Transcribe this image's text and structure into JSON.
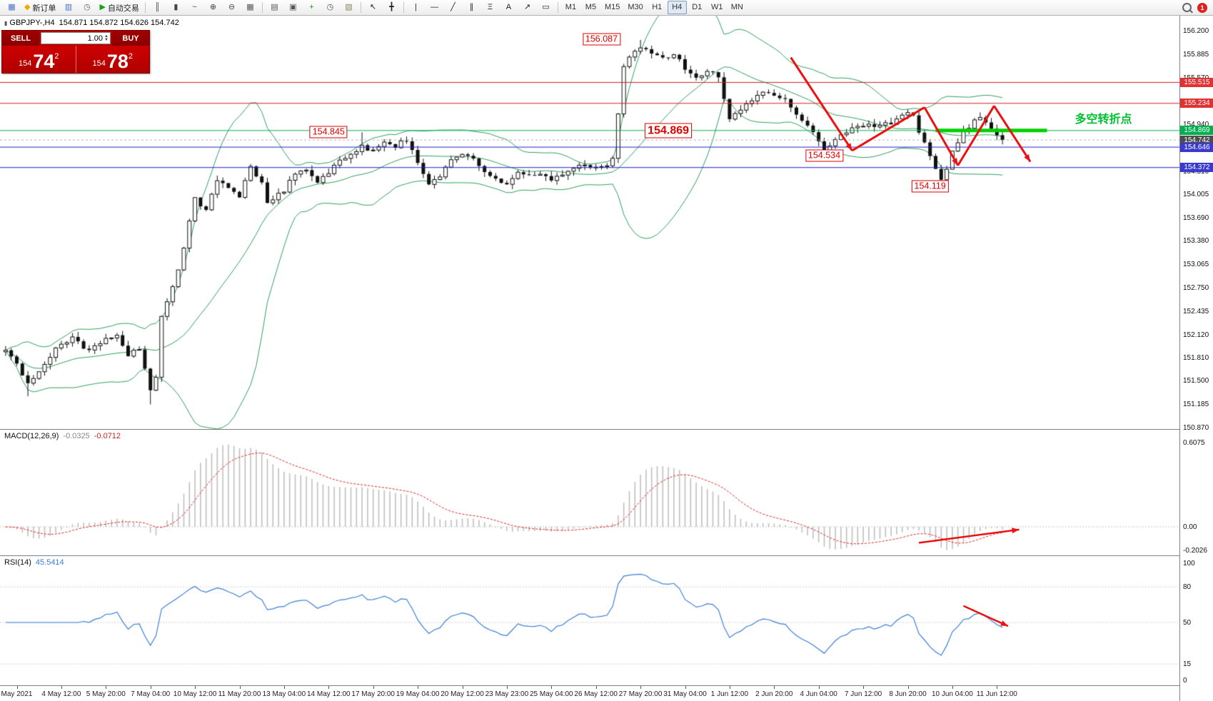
{
  "toolbar": {
    "groups": [
      {
        "items": [
          {
            "name": "new-chart-button",
            "glyph": "▦",
            "c": "#4472c4"
          },
          {
            "name": "new-order-button",
            "glyph": "◆",
            "c": "#f0a800",
            "label": "新订单"
          },
          {
            "name": "market-watch-button",
            "glyph": "▥",
            "c": "#4472c4"
          },
          {
            "name": "history-center-button",
            "glyph": "◷",
            "c": "#666666"
          },
          {
            "name": "autotrading-button",
            "glyph": "▶",
            "c": "#18a018",
            "label": "自动交易"
          }
        ]
      },
      {
        "items": [
          {
            "name": "bar-chart-type-button",
            "glyph": "║",
            "c": "#444444"
          },
          {
            "name": "candlestick-type-button",
            "glyph": "▮",
            "c": "#444444"
          },
          {
            "name": "line-chart-type-button",
            "glyph": "~",
            "c": "#444444"
          },
          {
            "name": "zoom-in-button",
            "glyph": "⊕",
            "c": "#444444"
          },
          {
            "name": "zoom-out-button",
            "glyph": "⊖",
            "c": "#444444"
          },
          {
            "name": "tile-windows-button",
            "glyph": "▦",
            "c": "#555555"
          }
        ]
      },
      {
        "items": [
          {
            "name": "charts-list-button",
            "glyph": "▤",
            "c": "#555555"
          },
          {
            "name": "data-window-button",
            "glyph": "▣",
            "c": "#555555"
          },
          {
            "name": "add-indicator-button",
            "glyph": "+",
            "c": "#18a018"
          },
          {
            "name": "periods-button",
            "glyph": "◷",
            "c": "#555555"
          },
          {
            "name": "templates-button",
            "glyph": "▧",
            "c": "#888855"
          }
        ]
      },
      {
        "items": [
          {
            "name": "cursor-button",
            "glyph": "↖",
            "c": "#222222"
          },
          {
            "name": "crosshair-button",
            "glyph": "╋",
            "c": "#222222"
          }
        ]
      },
      {
        "items": [
          {
            "name": "vertical-line-button",
            "glyph": "|",
            "c": "#222222"
          },
          {
            "name": "horizontal-line-button",
            "glyph": "—",
            "c": "#222222"
          },
          {
            "name": "trendline-button",
            "glyph": "╱",
            "c": "#222222"
          },
          {
            "name": "channel-button",
            "glyph": "∥",
            "c": "#222222"
          },
          {
            "name": "fibonacci-button",
            "glyph": "Ξ",
            "c": "#222222"
          },
          {
            "name": "text-button",
            "glyph": "A",
            "c": "#222222"
          },
          {
            "name": "arrows-tool-button",
            "glyph": "↗",
            "c": "#222222"
          },
          {
            "name": "shapes-button",
            "glyph": "▭",
            "c": "#222222"
          }
        ]
      },
      {
        "items": [
          {
            "name": "tf-m1-button",
            "glyph": "M1",
            "tf": true
          },
          {
            "name": "tf-m5-button",
            "glyph": "M5",
            "tf": true
          },
          {
            "name": "tf-m15-button",
            "glyph": "M15",
            "tf": true
          },
          {
            "name": "tf-m30-button",
            "glyph": "M30",
            "tf": true
          },
          {
            "name": "tf-h1-button",
            "glyph": "H1",
            "tf": true
          },
          {
            "name": "tf-h4-button",
            "glyph": "H4",
            "tf": true,
            "active": true
          },
          {
            "name": "tf-d1-button",
            "glyph": "D1",
            "tf": true
          },
          {
            "name": "tf-w1-button",
            "glyph": "W1",
            "tf": true
          },
          {
            "name": "tf-mn-button",
            "glyph": "MN",
            "tf": true
          }
        ]
      }
    ],
    "notification_count": "1"
  },
  "quote": {
    "symbol": "GBPJPY-,H4",
    "ohlc": "154.871 154.872 154.626 154.742"
  },
  "order_panel": {
    "sell_label": "SELL",
    "buy_label": "BUY",
    "volume": "1.00",
    "bid": {
      "prefix": "154",
      "big": "74",
      "sup": "2"
    },
    "ask": {
      "prefix": "154",
      "big": "78",
      "sup": "2"
    }
  },
  "chart_data": {
    "type": "candlestick",
    "symbol": "GBPJPY",
    "timeframe": "H4",
    "bars": 180,
    "price_range_visible": [
      150.87,
      156.2
    ],
    "close_anchors": [
      [
        0,
        151.9
      ],
      [
        2,
        151.75
      ],
      [
        4,
        151.45
      ],
      [
        6,
        151.65
      ],
      [
        9,
        151.95
      ],
      [
        12,
        152.1
      ],
      [
        15,
        151.9
      ],
      [
        18,
        152.05
      ],
      [
        20,
        152.15
      ],
      [
        22,
        151.85
      ],
      [
        24,
        151.95
      ],
      [
        26,
        151.4
      ],
      [
        27,
        151.55
      ],
      [
        28,
        152.35
      ],
      [
        30,
        152.75
      ],
      [
        32,
        153.3
      ],
      [
        34,
        153.95
      ],
      [
        36,
        153.8
      ],
      [
        38,
        154.2
      ],
      [
        40,
        154.1
      ],
      [
        42,
        153.95
      ],
      [
        44,
        154.4
      ],
      [
        46,
        154.15
      ],
      [
        47,
        153.9
      ],
      [
        50,
        154.05
      ],
      [
        52,
        154.3
      ],
      [
        54,
        154.35
      ],
      [
        56,
        154.15
      ],
      [
        58,
        154.3
      ],
      [
        60,
        154.45
      ],
      [
        62,
        154.55
      ],
      [
        64,
        154.65
      ],
      [
        66,
        154.6
      ],
      [
        68,
        154.7
      ],
      [
        70,
        154.65
      ],
      [
        72,
        154.75
      ],
      [
        74,
        154.45
      ],
      [
        76,
        154.15
      ],
      [
        78,
        154.25
      ],
      [
        80,
        154.45
      ],
      [
        82,
        154.55
      ],
      [
        84,
        154.5
      ],
      [
        86,
        154.3
      ],
      [
        88,
        154.2
      ],
      [
        90,
        154.15
      ],
      [
        92,
        154.3
      ],
      [
        94,
        154.25
      ],
      [
        96,
        154.3
      ],
      [
        98,
        154.2
      ],
      [
        100,
        154.3
      ],
      [
        102,
        154.35
      ],
      [
        104,
        154.4
      ],
      [
        106,
        154.35
      ],
      [
        108,
        154.4
      ],
      [
        109,
        154.5
      ],
      [
        110,
        155.1
      ],
      [
        111,
        155.7
      ],
      [
        112,
        155.85
      ],
      [
        114,
        156.0
      ],
      [
        116,
        155.9
      ],
      [
        118,
        155.85
      ],
      [
        120,
        155.9
      ],
      [
        122,
        155.7
      ],
      [
        124,
        155.55
      ],
      [
        126,
        155.65
      ],
      [
        128,
        155.6
      ],
      [
        129,
        155.3
      ],
      [
        130,
        155.05
      ],
      [
        132,
        155.15
      ],
      [
        134,
        155.25
      ],
      [
        136,
        155.4
      ],
      [
        138,
        155.35
      ],
      [
        140,
        155.3
      ],
      [
        142,
        155.1
      ],
      [
        144,
        154.95
      ],
      [
        146,
        154.7
      ],
      [
        147,
        154.57
      ],
      [
        148,
        154.65
      ],
      [
        150,
        154.8
      ],
      [
        152,
        154.9
      ],
      [
        154,
        154.95
      ],
      [
        156,
        154.9
      ],
      [
        158,
        154.95
      ],
      [
        160,
        155.0
      ],
      [
        162,
        155.1
      ],
      [
        163,
        155.05
      ],
      [
        164,
        154.85
      ],
      [
        166,
        154.55
      ],
      [
        168,
        154.2
      ],
      [
        169,
        154.35
      ],
      [
        170,
        154.6
      ],
      [
        172,
        154.85
      ],
      [
        174,
        155.0
      ],
      [
        175,
        155.05
      ],
      [
        176,
        154.95
      ],
      [
        177,
        154.9
      ],
      [
        178,
        154.8
      ],
      [
        179,
        154.742
      ]
    ],
    "wick_overrides": {
      "4": {
        "low": 151.3
      },
      "26": {
        "low": 151.19
      },
      "64": {
        "high": 154.845
      },
      "114": {
        "high": 156.087
      },
      "147": {
        "low": 154.534
      },
      "168": {
        "low": 154.119
      }
    },
    "bollinger": {
      "period": 20,
      "deviation": 2,
      "color": "#2e9e5b"
    },
    "price_axis_labels": [
      "156.200",
      "155.885",
      "155.570",
      "155.255",
      "154.940",
      "154.625",
      "154.310",
      "154.005",
      "153.690",
      "153.380",
      "153.065",
      "152.750",
      "152.435",
      "152.120",
      "151.810",
      "151.500",
      "151.185",
      "150.870"
    ],
    "price_badges": [
      {
        "text": "155.515",
        "color": "#e03232"
      },
      {
        "text": "155.234",
        "color": "#e03232"
      },
      {
        "text": "154.869",
        "color": "#00b050"
      },
      {
        "text": "154.742",
        "color": "#4d4d4d"
      },
      {
        "text": "154.646",
        "color": "#3a3ad0"
      },
      {
        "text": "154.372",
        "color": "#3a3ad0"
      }
    ],
    "hlines": [
      {
        "price": 155.515,
        "color": "#d02020",
        "width": 1
      },
      {
        "price": 155.234,
        "color": "#d02020",
        "width": 1
      },
      {
        "price": 154.869,
        "color": "#00b050",
        "width": 1
      },
      {
        "price": 154.742,
        "color": "#b0b0b0",
        "width": 1,
        "dash": true
      },
      {
        "price": 154.646,
        "color": "#2222cc",
        "width": 1
      },
      {
        "price": 154.372,
        "color": "#2222cc",
        "width": 1
      },
      {
        "price": 154.869,
        "color": "#00d000",
        "width": 5,
        "x1_bar": 167,
        "x2_bar": 187
      }
    ],
    "annotations": [
      {
        "text": "156.087",
        "bar": 107,
        "price": 156.09
      },
      {
        "text": "154.845",
        "bar": 58,
        "price": 154.845
      },
      {
        "text": "154.869",
        "bar": 119,
        "price": 154.869,
        "big": true
      },
      {
        "text": "154.534",
        "bar": 147,
        "price": 154.534
      },
      {
        "text": "154.119",
        "bar": 166,
        "price": 154.119
      }
    ],
    "note": {
      "text": "多空转折点",
      "bar": 192,
      "price": 155.04,
      "color": "#00c030"
    },
    "time_labels": [
      {
        "bar": 2,
        "text": "May 2021"
      },
      {
        "bar": 10,
        "text": "4 May 12:00"
      },
      {
        "bar": 18,
        "text": "5 May 20:00"
      },
      {
        "bar": 26,
        "text": "7 May 04:00"
      },
      {
        "bar": 34,
        "text": "10 May 12:00"
      },
      {
        "bar": 42,
        "text": "11 May 20:00"
      },
      {
        "bar": 50,
        "text": "13 May 04:00"
      },
      {
        "bar": 58,
        "text": "14 May 12:00"
      },
      {
        "bar": 66,
        "text": "17 May 20:00"
      },
      {
        "bar": 74,
        "text": "19 May 04:00"
      },
      {
        "bar": 82,
        "text": "20 May 12:00"
      },
      {
        "bar": 90,
        "text": "23 May 23:00"
      },
      {
        "bar": 98,
        "text": "25 May 04:00"
      },
      {
        "bar": 106,
        "text": "26 May 12:00"
      },
      {
        "bar": 114,
        "text": "27 May 20:00"
      },
      {
        "bar": 122,
        "text": "31 May 04:00"
      },
      {
        "bar": 130,
        "text": "1 Jun 12:00"
      },
      {
        "bar": 138,
        "text": "2 Jun 20:00"
      },
      {
        "bar": 146,
        "text": "4 Jun 04:00"
      },
      {
        "bar": 154,
        "text": "7 Jun 12:00"
      },
      {
        "bar": 162,
        "text": "8 Jun 20:00"
      },
      {
        "bar": 170,
        "text": "10 Jun 04:00"
      },
      {
        "bar": 178,
        "text": "11 Jun 12:00"
      }
    ],
    "macd": {
      "name": "MACD(12,26,9)",
      "main_value": "-0.0325",
      "signal_value": "-0.0712",
      "axis_labels": [
        "0.6075",
        "0.00",
        "-0.2026"
      ],
      "params": [
        12,
        26,
        9
      ],
      "hist_color": "#bfbfbf",
      "signal_color": "#e02020"
    },
    "rsi": {
      "name": "RSI(14)",
      "value": "45.5414",
      "period": 14,
      "axis_labels": [
        "100",
        "80",
        "50",
        "15",
        "0"
      ],
      "levels": [
        80,
        50,
        15
      ],
      "line_color": "#3b7dd8"
    },
    "arrows": {
      "color": "#ee1111",
      "main": [
        {
          "pts": [
            [
              141,
              155.85
            ],
            [
              152,
              154.6
            ]
          ],
          "head": true
        },
        {
          "pts": [
            [
              152,
              154.6
            ],
            [
              165,
              155.18
            ]
          ],
          "head": false
        },
        {
          "pts": [
            [
              165,
              155.18
            ],
            [
              171,
              154.4
            ]
          ],
          "head": true
        },
        {
          "pts": [
            [
              171,
              154.4
            ],
            [
              177.5,
              155.2
            ]
          ],
          "head": false
        },
        {
          "pts": [
            [
              177.5,
              155.2
            ],
            [
              184,
              154.45
            ]
          ],
          "head": true
        }
      ],
      "macd": [
        {
          "pts": [
            [
              164,
              -0.115
            ],
            [
              182,
              -0.02
            ]
          ],
          "head": true
        }
      ],
      "rsi": [
        {
          "pts": [
            [
              172,
              64
            ],
            [
              180,
              47
            ]
          ],
          "head": true
        }
      ]
    }
  }
}
